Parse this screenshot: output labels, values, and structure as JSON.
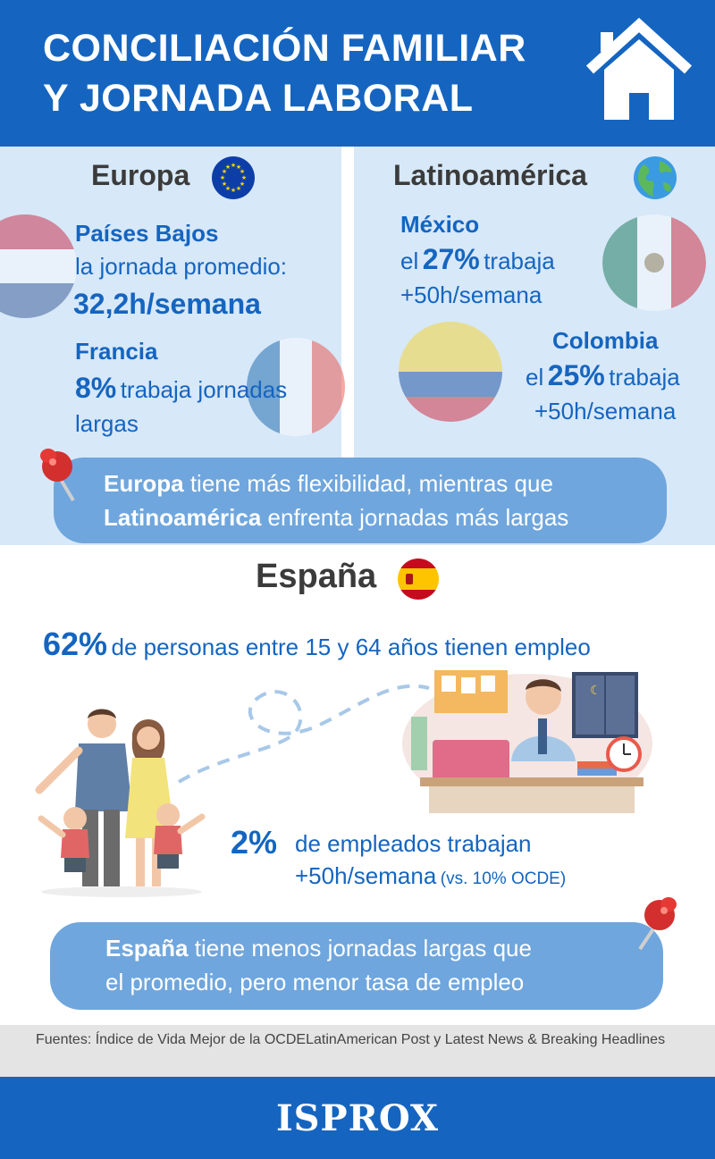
{
  "header": {
    "title": "CONCILIACIÓN FAMILIAR\nY JORNADA LABORAL",
    "icon": "house-icon"
  },
  "europe": {
    "title": "Europa",
    "icon": "eu-flag-icon",
    "netherlands": {
      "name": "Países Bajos",
      "text": "la jornada promedio:",
      "value": "32,2h/semana"
    },
    "france": {
      "name": "Francia",
      "value": "8%",
      "text": "trabaja jornadas",
      "text2": "largas"
    }
  },
  "latam": {
    "title": "Latinoamérica",
    "icon": "globe-icon",
    "mexico": {
      "name": "México",
      "prefix": "el",
      "value": "27%",
      "text": "trabaja",
      "text2": "+50h/semana"
    },
    "colombia": {
      "name": "Colombia",
      "prefix": "el",
      "value": "25%",
      "text": "trabaja",
      "text2": "+50h/semana"
    }
  },
  "callout_top": {
    "bold1": "Europa",
    "text1": "tiene más flexibilidad, mientras que",
    "bold2": "Latinoamérica",
    "text2": "enfrenta jornadas más largas"
  },
  "spain": {
    "title": "España",
    "icon": "spain-flag-icon",
    "stat1_value": "62%",
    "stat1_text": "de personas entre 15 y 64 años tienen empleo",
    "stat2_value": "2%",
    "stat2_text": "de empleados trabajan",
    "stat2_text2": "+50h/semana",
    "stat2_note": "(vs. 10% OCDE)"
  },
  "callout_bottom": {
    "bold1": "España",
    "text1": "tiene menos jornadas largas que",
    "text2": "el promedio, pero menor tasa de empleo"
  },
  "sources": "Fuentes: Índice de Vida Mejor de la OCDELatinAmerican Post y Latest News & Breaking Headlines",
  "footer": {
    "logo": "ISPROX"
  },
  "colors": {
    "primary": "#1565c0",
    "band": "#d7e8f8",
    "callout": "#6fa6dd",
    "pin": "#d32f2f"
  }
}
